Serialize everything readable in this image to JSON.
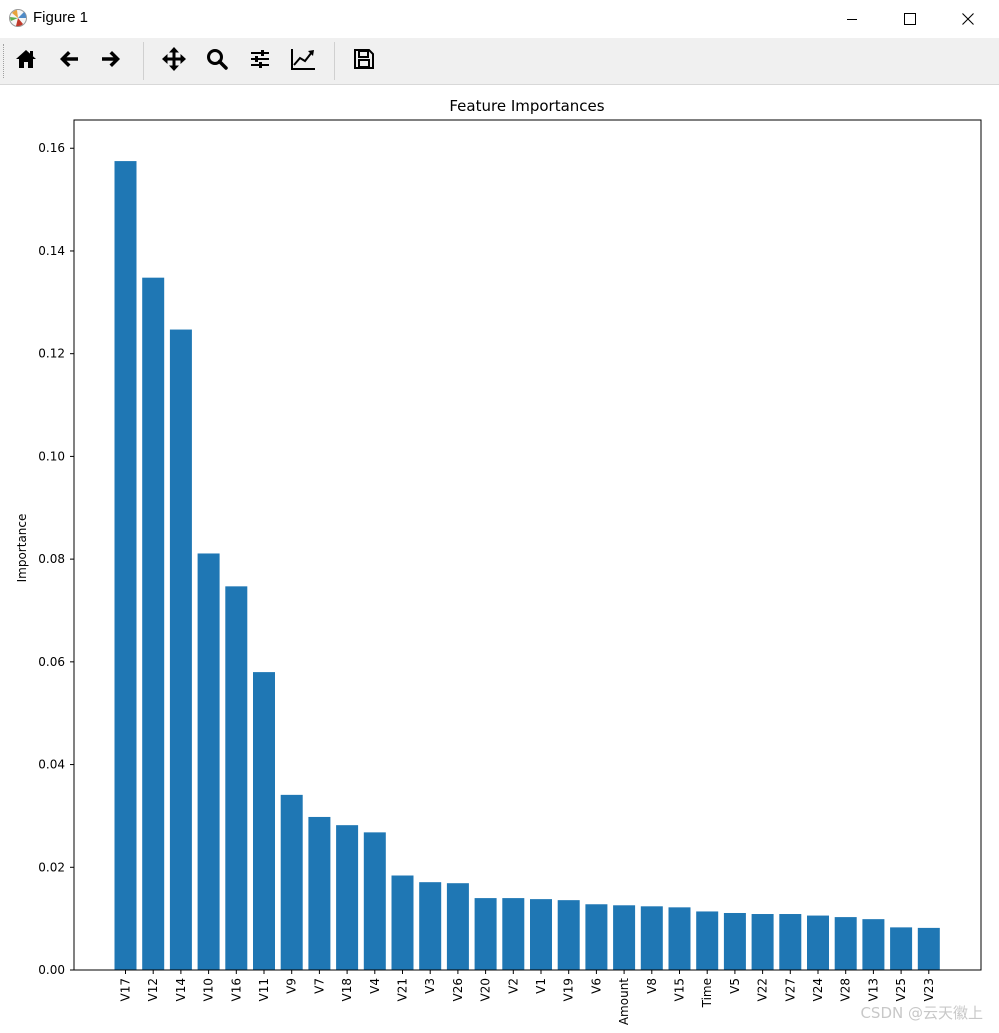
{
  "window": {
    "title": "Figure 1",
    "controls": {
      "minimize_icon": "minimize-icon",
      "maximize_icon": "maximize-icon",
      "close_icon": "close-icon"
    }
  },
  "toolbar": {
    "buttons": [
      {
        "name": "home-button",
        "icon": "home-icon"
      },
      {
        "name": "back-button",
        "icon": "arrow-left-icon"
      },
      {
        "name": "forward-button",
        "icon": "arrow-right-icon"
      },
      {
        "name": "pan-button",
        "icon": "move-icon"
      },
      {
        "name": "zoom-button",
        "icon": "magnifier-icon"
      },
      {
        "name": "configure-subplots-button",
        "icon": "sliders-icon"
      },
      {
        "name": "edit-axis-button",
        "icon": "line-chart-icon"
      },
      {
        "name": "save-button",
        "icon": "floppy-disk-icon"
      }
    ]
  },
  "watermark": "CSDN @云天徽上",
  "chart_data": {
    "type": "bar",
    "title": "Feature Importances",
    "xlabel": "",
    "ylabel": "Importance",
    "categories": [
      "V17",
      "V12",
      "V14",
      "V10",
      "V16",
      "V11",
      "V9",
      "V7",
      "V18",
      "V4",
      "V21",
      "V3",
      "V26",
      "V20",
      "V2",
      "V1",
      "V19",
      "V6",
      "Amount",
      "V8",
      "V15",
      "Time",
      "V5",
      "V22",
      "V27",
      "V24",
      "V28",
      "V13",
      "V25",
      "V23"
    ],
    "values": [
      0.1575,
      0.1348,
      0.1247,
      0.0811,
      0.0747,
      0.058,
      0.0341,
      0.0298,
      0.0282,
      0.0268,
      0.0184,
      0.0171,
      0.0169,
      0.014,
      0.014,
      0.0138,
      0.0136,
      0.0128,
      0.0126,
      0.0124,
      0.0122,
      0.0114,
      0.0111,
      0.0109,
      0.0109,
      0.0106,
      0.0103,
      0.0099,
      0.0083,
      0.0082
    ],
    "ylim": [
      0,
      0.16
    ],
    "yticks": [
      "0.00",
      "0.02",
      "0.04",
      "0.06",
      "0.08",
      "0.10",
      "0.12",
      "0.14",
      "0.16"
    ],
    "bar_color": "#1f77b4",
    "grid": false,
    "legend": "none"
  }
}
